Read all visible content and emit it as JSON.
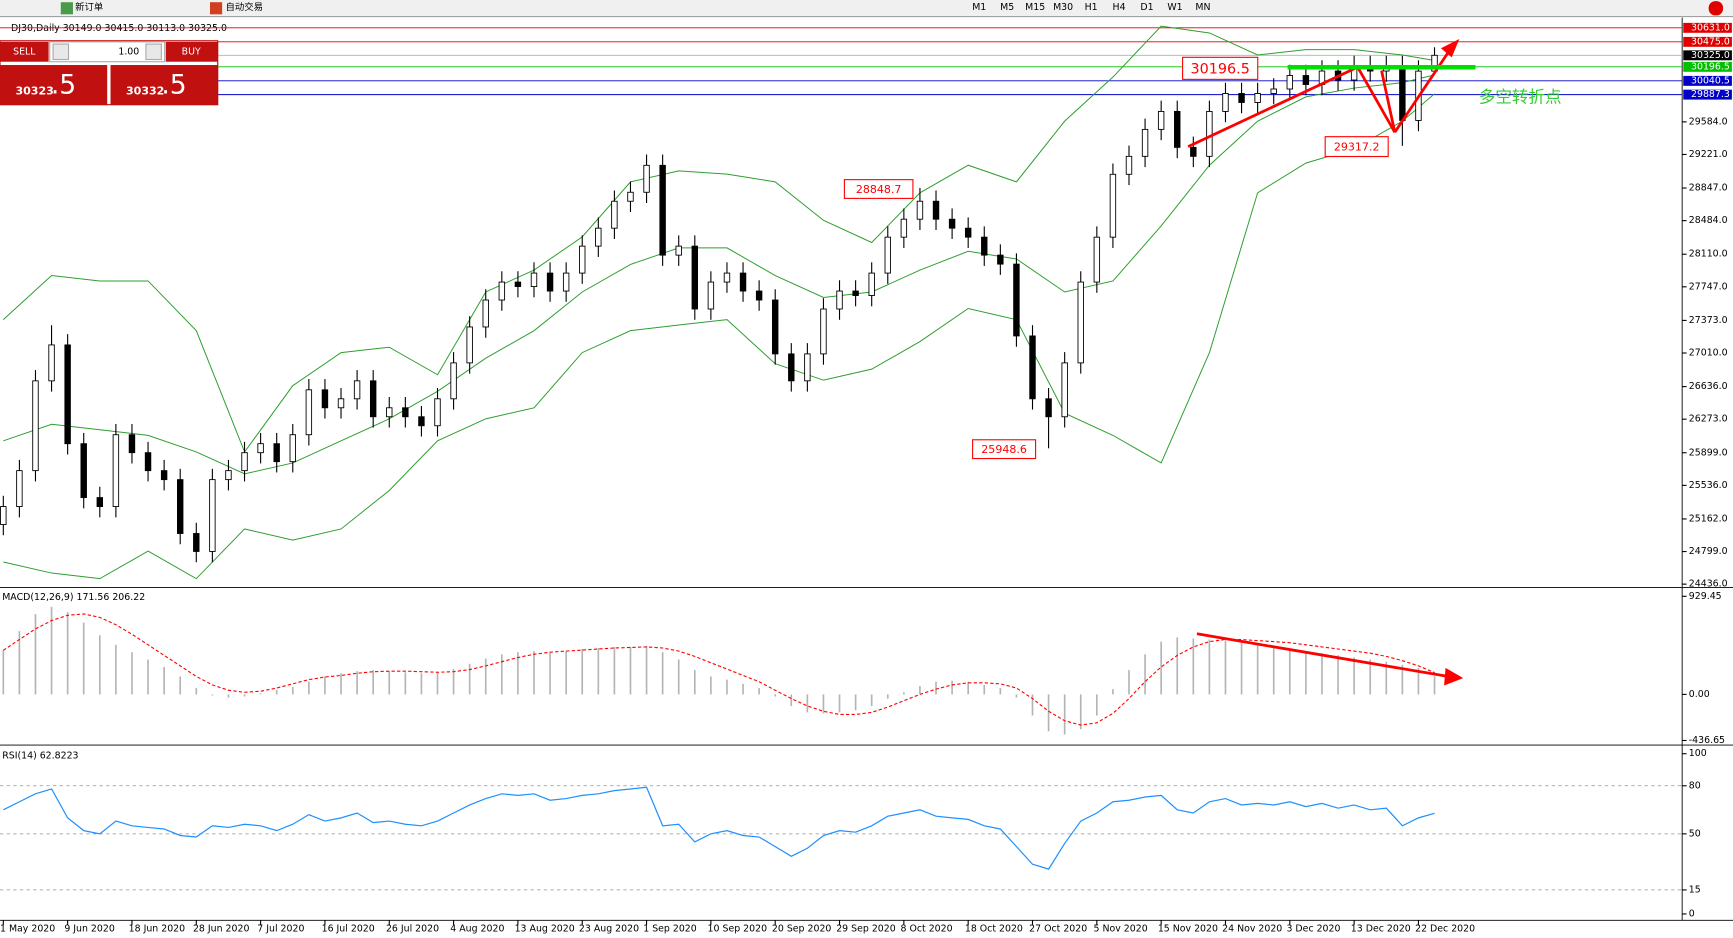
{
  "toolbar": {
    "new_order": "新订单",
    "auto_trading": "自动交易",
    "timeframes": [
      "M1",
      "M5",
      "M15",
      "M30",
      "H1",
      "H4",
      "D1",
      "W1",
      "MN"
    ]
  },
  "trade_panel": {
    "sell": "SELL",
    "lot": "1.00",
    "buy": "BUY",
    "sell_price_main": "30323",
    "sell_price_frac": ".5",
    "buy_price_main": "30332",
    "buy_price_frac": ".5"
  },
  "chart_data": [
    {
      "type": "candlestick",
      "title": "DJ30,Daily 30149.0 30415.0 30113.0 30325.0",
      "categories": [
        "1 May 2020",
        null,
        null,
        null,
        "9 Jun 2020",
        null,
        null,
        null,
        "18 Jun 2020",
        null,
        null,
        null,
        "28 Jun 2020",
        null,
        null,
        null,
        "7 Jul 2020",
        null,
        null,
        null,
        "16 Jul 2020",
        null,
        null,
        null,
        "26 Jul 2020",
        null,
        null,
        null,
        "4 Aug 2020",
        null,
        null,
        null,
        "13 Aug 2020",
        null,
        null,
        null,
        "23 Aug 2020",
        null,
        null,
        null,
        "1 Sep 2020",
        null,
        null,
        null,
        "10 Sep 2020",
        null,
        null,
        null,
        "20 Sep 2020",
        null,
        null,
        null,
        "29 Sep 2020",
        null,
        null,
        null,
        "8 Oct 2020",
        null,
        null,
        null,
        "18 Oct 2020",
        null,
        null,
        null,
        "27 Oct 2020",
        null,
        null,
        null,
        "5 Nov 2020",
        null,
        null,
        null,
        "15 Nov 2020",
        null,
        null,
        null,
        "24 Nov 2020",
        null,
        null,
        null,
        "3 Dec 2020",
        null,
        null,
        null,
        "13 Dec 2020",
        null,
        null,
        null,
        "22 Dec 2020",
        null
      ],
      "open": [
        25100,
        25300,
        25700,
        26700,
        27100,
        26000,
        25400,
        25300,
        26100,
        25900,
        25700,
        25600,
        25000,
        24800,
        25600,
        25700,
        25900,
        26000,
        25800,
        26100,
        26600,
        26400,
        26500,
        26700,
        26300,
        26400,
        26300,
        26200,
        26500,
        26900,
        27300,
        27600,
        27800,
        27750,
        27900,
        27700,
        27900,
        28200,
        28400,
        28700,
        28800,
        29100,
        28100,
        28200,
        27500,
        27800,
        27900,
        27700,
        27600,
        27000,
        26700,
        27000,
        27500,
        27700,
        27650,
        27900,
        28300,
        28500,
        28700,
        28500,
        28400,
        28300,
        28100,
        28000,
        27200,
        26500,
        26300,
        26900,
        27800,
        28300,
        29000,
        29200,
        29500,
        29700,
        29300,
        29200,
        29700,
        29900,
        29800,
        29900,
        29950,
        30100,
        30000,
        30150,
        30050,
        30200,
        30150,
        30200,
        29600,
        30149
      ],
      "high": [
        25420,
        25820,
        26820,
        27320,
        27220,
        26120,
        25520,
        26220,
        26220,
        26020,
        25820,
        25720,
        25120,
        25720,
        25820,
        26020,
        26120,
        26120,
        26220,
        26720,
        26720,
        26620,
        26820,
        26820,
        26520,
        26520,
        26420,
        26620,
        27020,
        27420,
        27720,
        27920,
        27920,
        28020,
        28020,
        28020,
        28320,
        28520,
        28820,
        28920,
        29220,
        29220,
        28320,
        28320,
        27920,
        28020,
        28020,
        27820,
        27720,
        27120,
        27120,
        27620,
        27820,
        27820,
        28020,
        28420,
        28620,
        28848.7,
        28820,
        28620,
        28520,
        28420,
        28220,
        28120,
        27320,
        26620,
        27020,
        27920,
        28420,
        29120,
        29320,
        29620,
        29820,
        29820,
        29420,
        29820,
        30020,
        30020,
        30020,
        30070,
        30220,
        30220,
        30270,
        30270,
        30320,
        30320,
        30320,
        30320,
        30269,
        30415
      ],
      "low": [
        24980,
        25180,
        25580,
        26580,
        25880,
        25280,
        25180,
        25180,
        25780,
        25580,
        25480,
        24880,
        24680,
        24680,
        25480,
        25580,
        25780,
        25680,
        25680,
        25980,
        26280,
        26280,
        26380,
        26180,
        26180,
        26180,
        26080,
        26080,
        26380,
        26780,
        27180,
        27480,
        27630,
        27630,
        27580,
        27580,
        27780,
        28080,
        28280,
        28580,
        28680,
        27980,
        27980,
        27380,
        27380,
        27680,
        27580,
        27480,
        26880,
        26580,
        26580,
        26880,
        27380,
        27530,
        27530,
        27780,
        28180,
        28380,
        28380,
        28280,
        28180,
        27980,
        27880,
        27080,
        26380,
        25948.6,
        26180,
        26780,
        27680,
        28180,
        28880,
        29080,
        29380,
        29180,
        29080,
        29080,
        29580,
        29680,
        29680,
        29780,
        29830,
        29880,
        29880,
        29930,
        29930,
        30030,
        30030,
        29317.2,
        29480,
        30113
      ],
      "close": [
        25300,
        25700,
        26700,
        27100,
        26000,
        25400,
        25300,
        26100,
        25900,
        25700,
        25600,
        25000,
        24800,
        25600,
        25700,
        25900,
        26000,
        25800,
        26100,
        26600,
        26400,
        26500,
        26700,
        26300,
        26400,
        26300,
        26200,
        26500,
        26900,
        27300,
        27600,
        27800,
        27750,
        27900,
        27700,
        27900,
        28200,
        28400,
        28700,
        28800,
        29100,
        28100,
        28200,
        27500,
        27800,
        27900,
        27700,
        27600,
        27000,
        26700,
        27000,
        27500,
        27700,
        27650,
        27900,
        28300,
        28500,
        28700,
        28500,
        28400,
        28300,
        28100,
        28000,
        27200,
        26500,
        26300,
        26900,
        27800,
        28300,
        29000,
        29200,
        29500,
        29700,
        29300,
        29200,
        29700,
        29900,
        29800,
        29900,
        29950,
        30100,
        30000,
        30150,
        30050,
        30200,
        30150,
        30200,
        29600,
        30149,
        30325
      ],
      "up_color": "#ffffff",
      "down_color": "#000000",
      "bands": {
        "color": "#2e9e2e",
        "x": [
          0,
          3,
          6,
          9,
          12,
          15,
          18,
          21,
          24,
          27,
          30,
          33,
          36,
          39,
          42,
          45,
          48,
          51,
          54,
          57,
          60,
          63,
          66,
          69,
          72,
          75,
          78,
          81,
          84,
          87,
          89
        ],
        "upper": [
          27382,
          27873,
          27812,
          27812,
          27259,
          25909,
          26646,
          27014,
          27075,
          26768,
          27689,
          27934,
          28303,
          28916,
          29039,
          29002,
          28916,
          28487,
          28241,
          28794,
          29101,
          28916,
          29592,
          30083,
          30650,
          30574,
          30328,
          30389,
          30389,
          30328,
          30267
        ],
        "middle": [
          26032,
          26216,
          26155,
          26093,
          25909,
          25664,
          25786,
          26032,
          26277,
          26584,
          26952,
          27259,
          27689,
          27996,
          28180,
          28180,
          27873,
          27628,
          27689,
          27934,
          28143,
          28057,
          27689,
          27812,
          28425,
          29101,
          29592,
          29862,
          29960,
          30021,
          30107
        ],
        "lower": [
          24682,
          24559,
          24497,
          24804,
          24497,
          25050,
          24927,
          25050,
          25479,
          26032,
          26277,
          26400,
          27014,
          27259,
          27321,
          27382,
          26891,
          26707,
          26830,
          27137,
          27505,
          27382,
          26339,
          26093,
          25786,
          27014,
          28794,
          29125,
          29285,
          29592,
          29898
        ]
      },
      "ylim": [
        24411,
        30671
      ],
      "yticks": [
        {
          "value": 24436,
          "label": "24436.0"
        },
        {
          "value": 24799,
          "label": "24799.0"
        },
        {
          "value": 25162,
          "label": "25162.0"
        },
        {
          "value": 25536,
          "label": "25536.0"
        },
        {
          "value": 25899,
          "label": "25899.0"
        },
        {
          "value": 26273,
          "label": "26273.0"
        },
        {
          "value": 26636,
          "label": "26636.0"
        },
        {
          "value": 27010,
          "label": "27010.0"
        },
        {
          "value": 27373,
          "label": "27373.0"
        },
        {
          "value": 27747,
          "label": "27747.0"
        },
        {
          "value": 28110,
          "label": "28110.0"
        },
        {
          "value": 28484,
          "label": "28484.0"
        },
        {
          "value": 28847,
          "label": "28847.0"
        },
        {
          "value": 29221,
          "label": "29221.0"
        },
        {
          "value": 29584,
          "label": "29584.0"
        }
      ],
      "price_lines": [
        {
          "value": 30631,
          "label": "30631.0",
          "color": "#e00000"
        },
        {
          "value": 30475,
          "label": "30475.0",
          "color": "#e00000"
        },
        {
          "value": 30325,
          "label": "30325.0",
          "color": "#000000"
        },
        {
          "value": 30196.5,
          "color": "#00c000"
        },
        {
          "value": 30040.5,
          "color": "#0000c8"
        },
        {
          "value": 29887.3,
          "color": "#0000c8"
        }
      ],
      "annotation": "多空转折点"
    },
    {
      "type": "macd",
      "title": "MACD(12,26,9) 171.56 206.22",
      "values": [
        420,
        600,
        760,
        830,
        780,
        680,
        560,
        470,
        400,
        330,
        260,
        170,
        60,
        -10,
        -30,
        -20,
        10,
        40,
        70,
        120,
        170,
        200,
        220,
        230,
        220,
        210,
        200,
        210,
        240,
        290,
        340,
        380,
        400,
        410,
        400,
        410,
        430,
        440,
        450,
        450,
        460,
        400,
        330,
        230,
        170,
        140,
        100,
        60,
        -20,
        -110,
        -170,
        -180,
        -170,
        -150,
        -110,
        -40,
        20,
        80,
        120,
        130,
        120,
        90,
        60,
        -30,
        -200,
        -350,
        -380,
        -330,
        -200,
        50,
        230,
        380,
        500,
        540,
        530,
        520,
        510,
        490,
        470,
        450,
        430,
        410,
        390,
        370,
        350,
        330,
        310,
        280,
        250,
        171.56
      ],
      "signal": [
        418,
        520,
        620,
        700,
        750,
        762,
        730,
        660,
        570,
        470,
        370,
        270,
        170,
        90,
        40,
        20,
        30,
        60,
        100,
        140,
        165,
        180,
        200,
        215,
        220,
        220,
        215,
        210,
        215,
        235,
        270,
        310,
        350,
        380,
        400,
        410,
        420,
        430,
        440,
        445,
        450,
        440,
        410,
        360,
        300,
        240,
        180,
        120,
        40,
        -40,
        -110,
        -160,
        -190,
        -190,
        -170,
        -120,
        -60,
        0,
        50,
        90,
        110,
        110,
        100,
        60,
        -40,
        -160,
        -250,
        -290,
        -270,
        -180,
        -40,
        120,
        260,
        370,
        450,
        500,
        520,
        520,
        510,
        500,
        490,
        470,
        450,
        430,
        410,
        390,
        360,
        320,
        270,
        206.22
      ],
      "color": "#b4b4b4",
      "signal_color": "#ff0000",
      "ylim": [
        -470,
        992
      ],
      "yticks": [
        929.45,
        {
          "value": 0,
          "label": "0.00"
        },
        -436.65
      ]
    },
    {
      "type": "line",
      "title": "RSI(14) 62.8223",
      "values": [
        65,
        70,
        75,
        78,
        60,
        52,
        50,
        58,
        55,
        54,
        53,
        49,
        48,
        55,
        54,
        56,
        55,
        52,
        56,
        62,
        58,
        60,
        63,
        57,
        58,
        56,
        55,
        58,
        63,
        68,
        72,
        75,
        74,
        75,
        71,
        72,
        74,
        75,
        77,
        78,
        79,
        55,
        56,
        45,
        50,
        52,
        49,
        48,
        42,
        36,
        41,
        49,
        52,
        51,
        55,
        61,
        63,
        65,
        61,
        60,
        59,
        55,
        53,
        42,
        31,
        28,
        44,
        58,
        63,
        70,
        71,
        73,
        74,
        65,
        63,
        70,
        72,
        68,
        69,
        68,
        70,
        67,
        69,
        66,
        68,
        65,
        66,
        55,
        60,
        62.8223
      ],
      "color": "#1e90ff",
      "ylim": [
        -4,
        104
      ],
      "yticks": [
        100,
        80,
        50,
        15,
        0
      ],
      "levels": [
        80,
        50,
        15
      ]
    }
  ]
}
